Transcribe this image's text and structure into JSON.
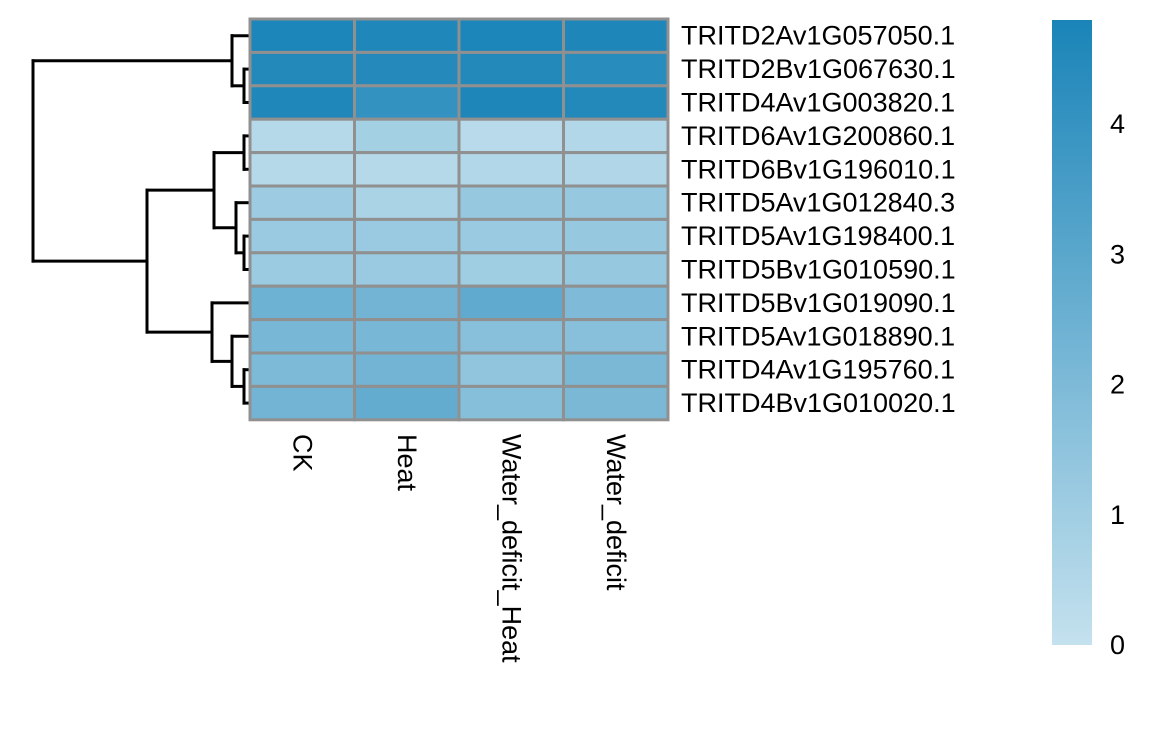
{
  "chart_data": {
    "type": "heatmap",
    "title": "",
    "rows": [
      "TRITD2Av1G057050.1",
      "TRITD2Bv1G067630.1",
      "TRITD4Av1G003820.1",
      "TRITD6Av1G200860.1",
      "TRITD6Bv1G196010.1",
      "TRITD5Av1G012840.3",
      "TRITD5Av1G198400.1",
      "TRITD5Bv1G010590.1",
      "TRITD5Bv1G019090.1",
      "TRITD5Av1G018890.1",
      "TRITD4Av1G195760.1",
      "TRITD4Bv1G010020.1"
    ],
    "columns": [
      "CK",
      "Heat",
      "Water_deficit_Heat",
      "Water_deficit"
    ],
    "values": [
      [
        4.75,
        4.65,
        4.75,
        4.7
      ],
      [
        4.55,
        4.5,
        4.55,
        4.4
      ],
      [
        4.65,
        4.1,
        4.7,
        4.55
      ],
      [
        0.4,
        0.9,
        0.35,
        0.5
      ],
      [
        0.4,
        0.4,
        0.5,
        0.55
      ],
      [
        1.1,
        0.7,
        1.3,
        1.3
      ],
      [
        1.2,
        1.2,
        1.2,
        1.3
      ],
      [
        1.15,
        1.2,
        1.05,
        1.3
      ],
      [
        2.45,
        2.3,
        2.85,
        1.95
      ],
      [
        2.15,
        2.15,
        1.7,
        1.7
      ],
      [
        2.0,
        2.3,
        1.45,
        2.1
      ],
      [
        2.3,
        2.75,
        1.75,
        2.1
      ]
    ],
    "colorbar": {
      "min": 0,
      "max": 4.8,
      "ticks": [
        0,
        1,
        2,
        3,
        4
      ],
      "tick_labels": [
        "0",
        "1",
        "2",
        "3",
        "4"
      ],
      "color_low": "#c4e1ee",
      "color_high": "#1a84b8"
    },
    "row_dendrogram": true,
    "legend": "right",
    "cell_border_color": "#909090"
  }
}
